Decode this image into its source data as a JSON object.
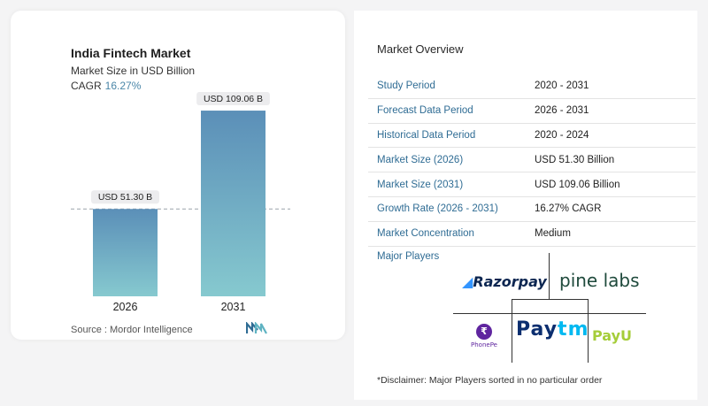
{
  "header": {
    "title": "India Fintech Market",
    "subtitle": "Market Size in USD Billion",
    "cagr_label": "CAGR",
    "cagr_value": "16.27%"
  },
  "chart_data": {
    "type": "bar",
    "categories": [
      "2026",
      "2031"
    ],
    "values": [
      51.3,
      109.06
    ],
    "data_labels": [
      "USD 51.30 B",
      "USD 109.06 B"
    ],
    "title": "India Fintech Market",
    "ylabel": "Market Size in USD Billion",
    "xlabel": "",
    "ylim": [
      0,
      120
    ],
    "colors": [
      "#5b8fb8",
      "#86c9cf"
    ]
  },
  "source": "Source :  Mordor Intelligence",
  "overview": {
    "title": "Market Overview",
    "rows": [
      {
        "key": "Study Period",
        "value": "2020 - 2031"
      },
      {
        "key": "Forecast Data Period",
        "value": "2026 - 2031"
      },
      {
        "key": "Historical Data Period",
        "value": "2020 - 2024"
      },
      {
        "key": "Market Size (2026)",
        "value": "USD 51.30 Billion"
      },
      {
        "key": "Market Size (2031)",
        "value": "USD 109.06 Billion"
      },
      {
        "key": "Growth Rate (2026 - 2031)",
        "value": "16.27% CAGR"
      },
      {
        "key": "Market Concentration",
        "value": "Medium"
      }
    ]
  },
  "major_players": {
    "title": "Major Players",
    "logos": [
      "Razorpay",
      "pine labs",
      "PhonePe",
      "Paytm",
      "PayU"
    ]
  },
  "disclaimer": "*Disclaimer: Major Players sorted in no particular order"
}
